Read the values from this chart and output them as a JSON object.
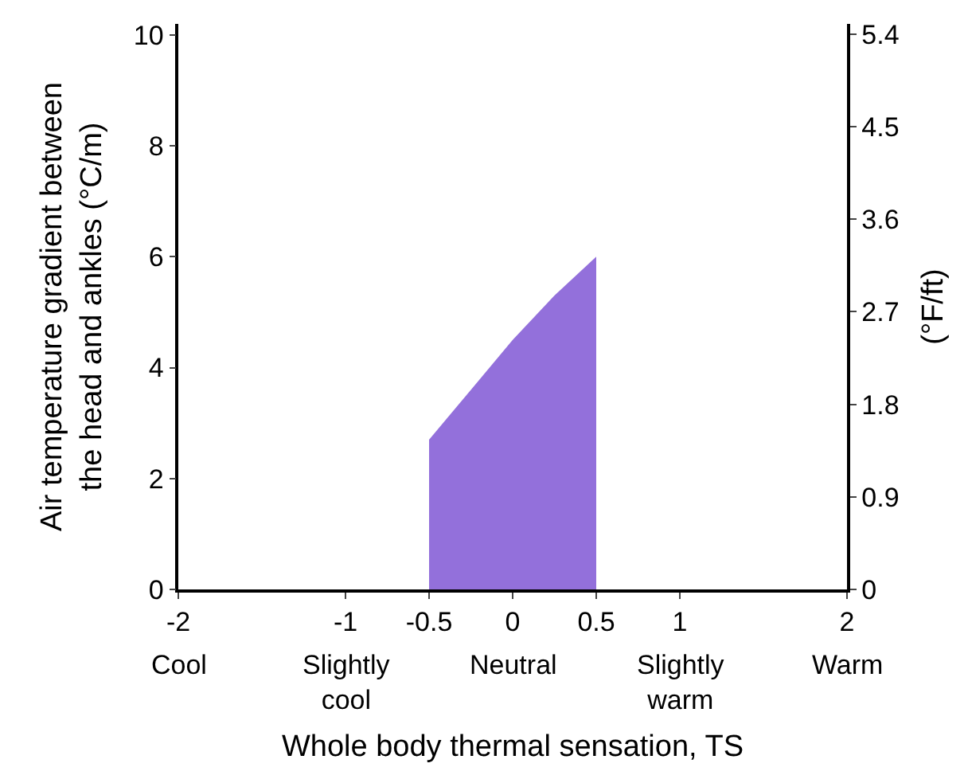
{
  "chart_data": {
    "type": "area",
    "x": [
      -0.5,
      -0.25,
      0,
      0.25,
      0.5
    ],
    "series": [
      {
        "color": "#9370db",
        "values": [
          2.7,
          3.6,
          4.5,
          5.3,
          6.0
        ]
      }
    ],
    "xlabel": "Whole body thermal sensation, TS",
    "ylabel": "Air temperature gradient between\nthe head and ankles (°C/m)",
    "y2label": "(°F/ft)",
    "xlim": [
      -2,
      2
    ],
    "xticks": [
      -2,
      -1,
      -0.5,
      0,
      0.5,
      1,
      2
    ],
    "annotations": [
      "Cool",
      "Slightly\ncool",
      "Neutral",
      "Slightly\nwarm",
      "Warm"
    ],
    "ylim": [
      0,
      10.2
    ],
    "yticks": [
      0,
      2,
      4,
      6,
      8,
      10
    ],
    "y2lim": [
      0,
      5.5
    ],
    "y2ticks": [
      0,
      0.9,
      1.8,
      2.7,
      3.6,
      4.5,
      5.4
    ],
    "line_style": "solid"
  }
}
